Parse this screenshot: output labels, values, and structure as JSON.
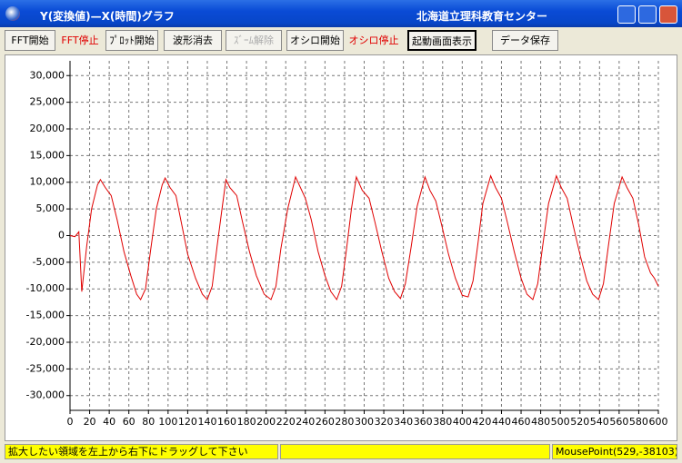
{
  "window": {
    "title": "Y(変換値)—X(時間)グラフ",
    "organization": "北海道立理科教育センター"
  },
  "toolbar": {
    "buttons": [
      "FFT開始",
      "FFT停止",
      "ﾌﾟﾛｯﾄ開始",
      "波形消去",
      "ｽﾞｰﾑ解除",
      "オシロ開始",
      "オシロ停止",
      "起動画面表示",
      "データ保存"
    ]
  },
  "status_bar": {
    "message": "拡大したい領域を左上から右下にドラッグして下さい",
    "mouse_point": "MousePoint(529,-38103)"
  },
  "chart_data": {
    "type": "line",
    "color": "#e00000",
    "grid": true,
    "x": [
      0,
      5,
      9,
      12,
      17,
      22,
      28,
      31,
      36,
      42,
      48,
      55,
      62,
      68,
      72,
      77,
      82,
      88,
      94,
      97,
      102,
      108,
      114,
      120,
      128,
      135,
      140,
      145,
      150,
      155,
      159,
      163,
      170,
      176,
      183,
      190,
      198,
      205,
      210,
      215,
      222,
      230,
      235,
      240,
      246,
      253,
      260,
      266,
      272,
      277,
      282,
      287,
      292,
      298,
      305,
      311,
      318,
      325,
      331,
      337,
      342,
      348,
      354,
      362,
      367,
      373,
      379,
      386,
      393,
      400,
      406,
      411,
      416,
      421,
      429,
      434,
      440,
      446,
      453,
      460,
      466,
      472,
      477,
      482,
      488,
      496,
      501,
      507,
      513,
      520,
      527,
      533,
      539,
      544,
      549,
      555,
      563,
      568,
      574,
      580,
      586,
      592,
      596,
      600
    ],
    "values": [
      0,
      -200,
      700,
      -10500,
      -2000,
      5000,
      9500,
      10500,
      9000,
      7500,
      3000,
      -3000,
      -7500,
      -11000,
      -12000,
      -10000,
      -3000,
      5000,
      9500,
      10800,
      9000,
      7500,
      2000,
      -3500,
      -8000,
      -11000,
      -12000,
      -9500,
      -2000,
      5000,
      10500,
      9000,
      7500,
      2500,
      -3000,
      -7500,
      -11000,
      -12000,
      -9500,
      -2500,
      5000,
      11000,
      9000,
      7000,
      3000,
      -3000,
      -7500,
      -10500,
      -12000,
      -9500,
      -2500,
      5000,
      11000,
      8500,
      7000,
      2500,
      -3000,
      -8000,
      -10500,
      -11800,
      -9000,
      -2000,
      5500,
      11000,
      8500,
      6500,
      2000,
      -3500,
      -8000,
      -11200,
      -11500,
      -8500,
      -1500,
      6000,
      11200,
      9000,
      7000,
      2500,
      -3000,
      -8000,
      -11000,
      -12000,
      -9000,
      -2000,
      6000,
      11200,
      9000,
      7000,
      2000,
      -3500,
      -8500,
      -11000,
      -12000,
      -9000,
      -2000,
      6000,
      11000,
      9000,
      7000,
      2000,
      -4000,
      -7000,
      -8000,
      -9500
    ],
    "xlim": [
      0,
      600
    ],
    "xticks": [
      0,
      20,
      40,
      60,
      80,
      100,
      120,
      140,
      160,
      180,
      200,
      220,
      240,
      260,
      280,
      300,
      320,
      340,
      360,
      380,
      400,
      420,
      440,
      460,
      480,
      500,
      520,
      540,
      560,
      580,
      600
    ],
    "ylim": [
      -32768,
      32767
    ],
    "yticks": [
      {
        "value": -30000,
        "label": "-30,000"
      },
      {
        "value": -25000,
        "label": "-25,000"
      },
      {
        "value": -20000,
        "label": "-20,000"
      },
      {
        "value": -15000,
        "label": "-15,000"
      },
      {
        "value": -10000,
        "label": "-10,000"
      },
      {
        "value": -5000,
        "label": "-5,000"
      },
      0,
      {
        "value": 5000,
        "label": "5,000"
      },
      {
        "value": 10000,
        "label": "10,000"
      },
      {
        "value": 15000,
        "label": "15,000"
      },
      {
        "value": 20000,
        "label": "20,000"
      },
      {
        "value": 25000,
        "label": "25,000"
      },
      {
        "value": 30000,
        "label": "30,000"
      }
    ]
  }
}
